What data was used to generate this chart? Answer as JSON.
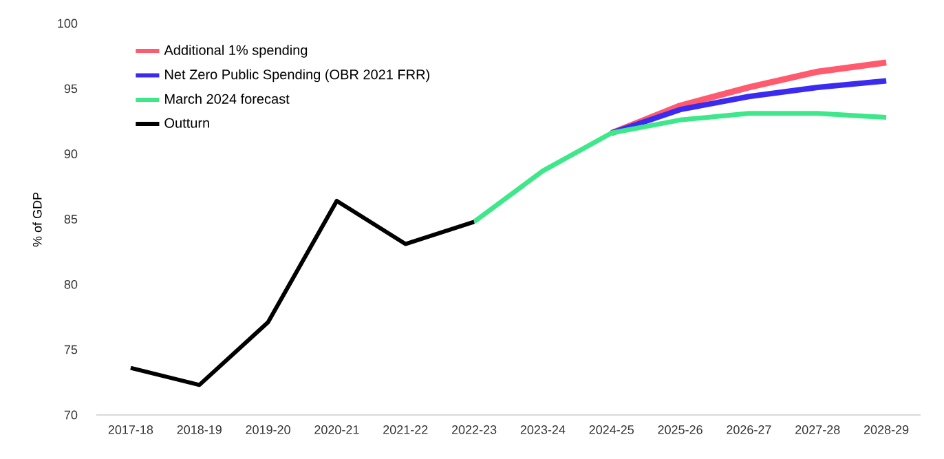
{
  "chart_data": {
    "type": "line",
    "ylabel": "% of GDP",
    "categories": [
      "2017-18",
      "2018-19",
      "2019-20",
      "2020-21",
      "2021-22",
      "2022-23",
      "2023-24",
      "2024-25",
      "2025-26",
      "2026-27",
      "2027-28",
      "2028-29"
    ],
    "series": [
      {
        "name": "Additional 1% spending",
        "color": "#ff5a6e",
        "values": [
          null,
          null,
          null,
          null,
          null,
          null,
          null,
          91.6,
          93.7,
          95.1,
          96.3,
          97.0
        ]
      },
      {
        "name": "Net Zero Public Spending (OBR 2021 FRR)",
        "color": "#3b2bf0",
        "values": [
          null,
          null,
          null,
          null,
          null,
          null,
          null,
          91.6,
          93.4,
          94.4,
          95.1,
          95.6
        ]
      },
      {
        "name": "March 2024 forecast",
        "color": "#3ee88a",
        "values": [
          null,
          null,
          null,
          null,
          null,
          84.8,
          88.7,
          91.6,
          92.6,
          93.1,
          93.1,
          92.8
        ]
      },
      {
        "name": "Outturn",
        "color": "#000000",
        "values": [
          73.6,
          72.3,
          77.1,
          86.4,
          83.1,
          84.8,
          null,
          null,
          null,
          null,
          null,
          null
        ]
      }
    ],
    "ylim": [
      70,
      100
    ],
    "yticks": [
      70,
      75,
      80,
      85,
      90,
      95,
      100
    ],
    "grid": false,
    "legend": "top left"
  }
}
